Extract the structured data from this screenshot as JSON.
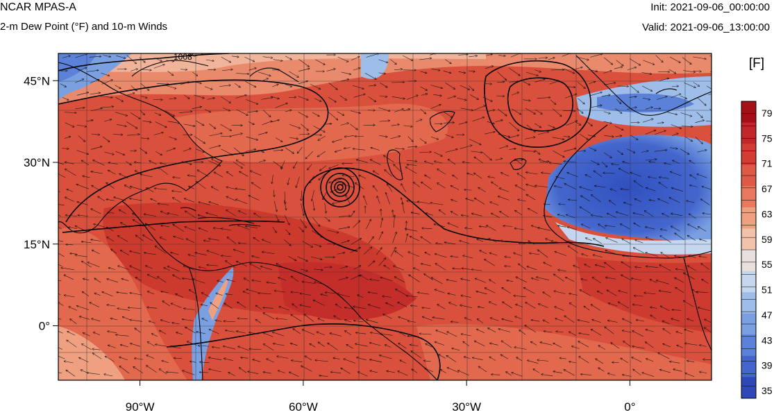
{
  "header": {
    "model": "NCAR MPAS-A",
    "field": "2-m Dew Point (°F) and 10-m Winds",
    "init": "Init: 2021-09-06_00:00:00",
    "valid": "Valid: 2021-09-06_13:00:00"
  },
  "map": {
    "lon_range": [
      -105,
      15
    ],
    "lat_range": [
      -10,
      50
    ],
    "lat_ticks": [
      {
        "value": 45,
        "label": "45°N"
      },
      {
        "value": 30,
        "label": "30°N"
      },
      {
        "value": 15,
        "label": "15°N"
      },
      {
        "value": 0,
        "label": "0°"
      }
    ],
    "lon_ticks": [
      {
        "value": -90,
        "label": "90°W"
      },
      {
        "value": -60,
        "label": "60°W"
      },
      {
        "value": -30,
        "label": "30°W"
      },
      {
        "value": 0,
        "label": "0°"
      }
    ],
    "gridlines": true,
    "contour_label": "1008",
    "hurricane_center": {
      "lon": -53,
      "lat": 22
    }
  },
  "colorbar": {
    "unit": "[F]",
    "labels": [
      "79",
      "75",
      "71",
      "67",
      "63",
      "59",
      "55",
      "51",
      "47",
      "43",
      "39",
      "35"
    ],
    "colors": [
      "#a50f15",
      "#c0282b",
      "#d23c32",
      "#de5a45",
      "#e8795c",
      "#efa081",
      "#f2c2aa",
      "#e8e0dc",
      "#c6d6ee",
      "#9ebde9",
      "#7ba0e2",
      "#5b82d8",
      "#4466cc",
      "#2f48b8"
    ]
  }
}
